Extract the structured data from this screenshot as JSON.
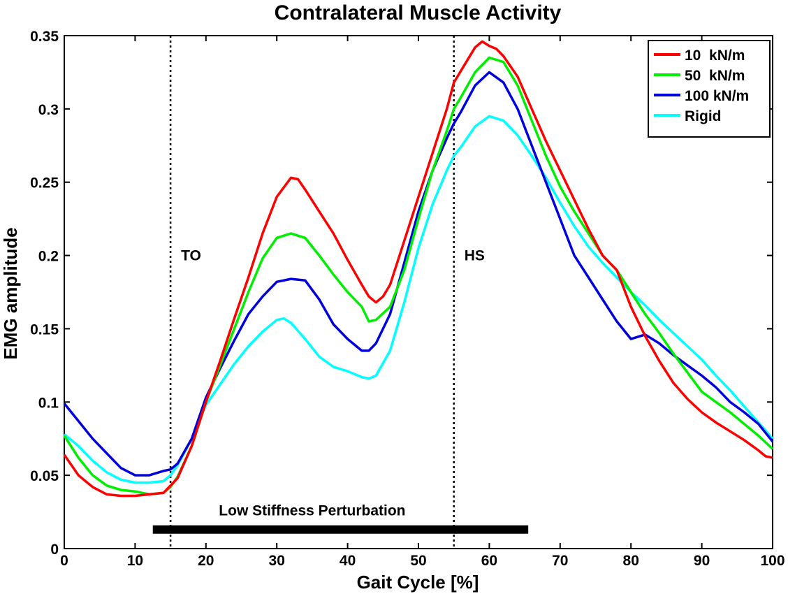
{
  "chart_data": {
    "type": "line",
    "title": "Contralateral Muscle Activity",
    "xlabel": "Gait Cycle [%]",
    "ylabel": "EMG amplitude",
    "xlim": [
      0,
      100
    ],
    "ylim": [
      0,
      0.35
    ],
    "xticks": [
      0,
      10,
      20,
      30,
      40,
      50,
      60,
      70,
      80,
      90,
      100
    ],
    "yticks": [
      0,
      0.05,
      0.1,
      0.15,
      0.2,
      0.25,
      0.3,
      0.35
    ],
    "ytick_labels": [
      "0",
      "0.05",
      "0.1",
      "0.15",
      "0.2",
      "0.25",
      "0.3",
      "0.35"
    ],
    "grid": false,
    "legend_position": "top-right",
    "series": [
      {
        "name": "10  kN/m",
        "color": "#ff0000",
        "x": [
          0,
          2,
          4,
          6,
          8,
          10,
          12,
          14,
          15,
          16,
          18,
          20,
          22,
          24,
          26,
          28,
          30,
          32,
          33,
          34,
          36,
          38,
          40,
          42,
          43,
          44,
          45,
          46,
          48,
          50,
          52,
          54,
          55,
          56,
          58,
          59,
          60,
          61,
          62,
          64,
          66,
          68,
          70,
          72,
          74,
          76,
          78,
          80,
          82,
          84,
          86,
          88,
          90,
          92,
          94,
          96,
          98,
          99,
          100
        ],
        "y": [
          0.064,
          0.05,
          0.042,
          0.037,
          0.036,
          0.036,
          0.037,
          0.038,
          0.043,
          0.048,
          0.07,
          0.1,
          0.128,
          0.157,
          0.185,
          0.215,
          0.24,
          0.253,
          0.252,
          0.245,
          0.23,
          0.215,
          0.197,
          0.18,
          0.172,
          0.168,
          0.172,
          0.18,
          0.21,
          0.24,
          0.27,
          0.3,
          0.318,
          0.326,
          0.342,
          0.346,
          0.343,
          0.341,
          0.336,
          0.322,
          0.3,
          0.278,
          0.258,
          0.238,
          0.218,
          0.2,
          0.19,
          0.165,
          0.145,
          0.128,
          0.113,
          0.102,
          0.093,
          0.086,
          0.08,
          0.074,
          0.067,
          0.063,
          0.062
        ]
      },
      {
        "name": "50  kN/m",
        "color": "#00ee00",
        "x": [
          0,
          2,
          4,
          6,
          8,
          10,
          12,
          14,
          15,
          16,
          18,
          20,
          22,
          24,
          26,
          28,
          30,
          32,
          34,
          36,
          38,
          40,
          42,
          43,
          44,
          46,
          48,
          50,
          52,
          54,
          55,
          56,
          58,
          60,
          62,
          64,
          66,
          68,
          70,
          72,
          74,
          76,
          78,
          80,
          82,
          84,
          86,
          88,
          90,
          92,
          94,
          96,
          98,
          100
        ],
        "y": [
          0.077,
          0.062,
          0.05,
          0.043,
          0.04,
          0.039,
          0.037,
          0.038,
          0.042,
          0.049,
          0.07,
          0.1,
          0.125,
          0.15,
          0.175,
          0.198,
          0.212,
          0.215,
          0.212,
          0.2,
          0.187,
          0.175,
          0.165,
          0.155,
          0.156,
          0.165,
          0.19,
          0.225,
          0.258,
          0.285,
          0.3,
          0.308,
          0.325,
          0.335,
          0.332,
          0.316,
          0.292,
          0.268,
          0.247,
          0.23,
          0.215,
          0.2,
          0.19,
          0.175,
          0.16,
          0.147,
          0.133,
          0.12,
          0.107,
          0.1,
          0.093,
          0.085,
          0.077,
          0.068
        ]
      },
      {
        "name": "100 kN/m",
        "color": "#0000dd",
        "x": [
          0,
          2,
          4,
          6,
          8,
          10,
          12,
          14,
          15,
          16,
          18,
          20,
          22,
          24,
          26,
          28,
          30,
          32,
          34,
          36,
          38,
          40,
          42,
          43,
          44,
          46,
          48,
          50,
          52,
          54,
          55,
          56,
          58,
          60,
          62,
          64,
          66,
          68,
          70,
          72,
          74,
          76,
          78,
          80,
          82,
          84,
          86,
          88,
          90,
          92,
          94,
          96,
          98,
          100
        ],
        "y": [
          0.099,
          0.087,
          0.075,
          0.065,
          0.055,
          0.05,
          0.05,
          0.053,
          0.054,
          0.058,
          0.075,
          0.103,
          0.123,
          0.142,
          0.16,
          0.172,
          0.182,
          0.184,
          0.183,
          0.17,
          0.153,
          0.143,
          0.135,
          0.135,
          0.14,
          0.16,
          0.195,
          0.23,
          0.258,
          0.28,
          0.29,
          0.298,
          0.316,
          0.325,
          0.318,
          0.3,
          0.275,
          0.25,
          0.225,
          0.2,
          0.185,
          0.17,
          0.155,
          0.143,
          0.146,
          0.14,
          0.132,
          0.125,
          0.118,
          0.11,
          0.1,
          0.093,
          0.085,
          0.073
        ]
      },
      {
        "name": "Rigid",
        "color": "#00ffff",
        "x": [
          0,
          2,
          4,
          6,
          8,
          10,
          12,
          14,
          15,
          16,
          18,
          20,
          22,
          24,
          26,
          28,
          30,
          31,
          32,
          34,
          36,
          38,
          40,
          42,
          43,
          44,
          46,
          48,
          50,
          52,
          54,
          55,
          56,
          58,
          60,
          62,
          64,
          66,
          68,
          70,
          72,
          74,
          76,
          78,
          80,
          82,
          84,
          86,
          88,
          90,
          92,
          94,
          96,
          98,
          100
        ],
        "y": [
          0.078,
          0.07,
          0.06,
          0.052,
          0.047,
          0.045,
          0.045,
          0.046,
          0.05,
          0.057,
          0.075,
          0.098,
          0.112,
          0.126,
          0.138,
          0.148,
          0.156,
          0.157,
          0.154,
          0.143,
          0.131,
          0.124,
          0.121,
          0.117,
          0.116,
          0.118,
          0.135,
          0.168,
          0.205,
          0.235,
          0.258,
          0.268,
          0.274,
          0.288,
          0.295,
          0.292,
          0.282,
          0.268,
          0.253,
          0.236,
          0.22,
          0.206,
          0.195,
          0.185,
          0.175,
          0.166,
          0.156,
          0.147,
          0.138,
          0.129,
          0.118,
          0.108,
          0.097,
          0.086,
          0.075
        ]
      }
    ],
    "vlines": [
      {
        "x": 15,
        "label": "TO",
        "label_y": 0.2
      },
      {
        "x": 55,
        "label": "HS",
        "label_y": 0.2
      }
    ],
    "bar_annotation": {
      "label": "Low Stiffness Perturbation",
      "x_start": 12.5,
      "x_end": 65.5,
      "y": 0.013
    }
  }
}
